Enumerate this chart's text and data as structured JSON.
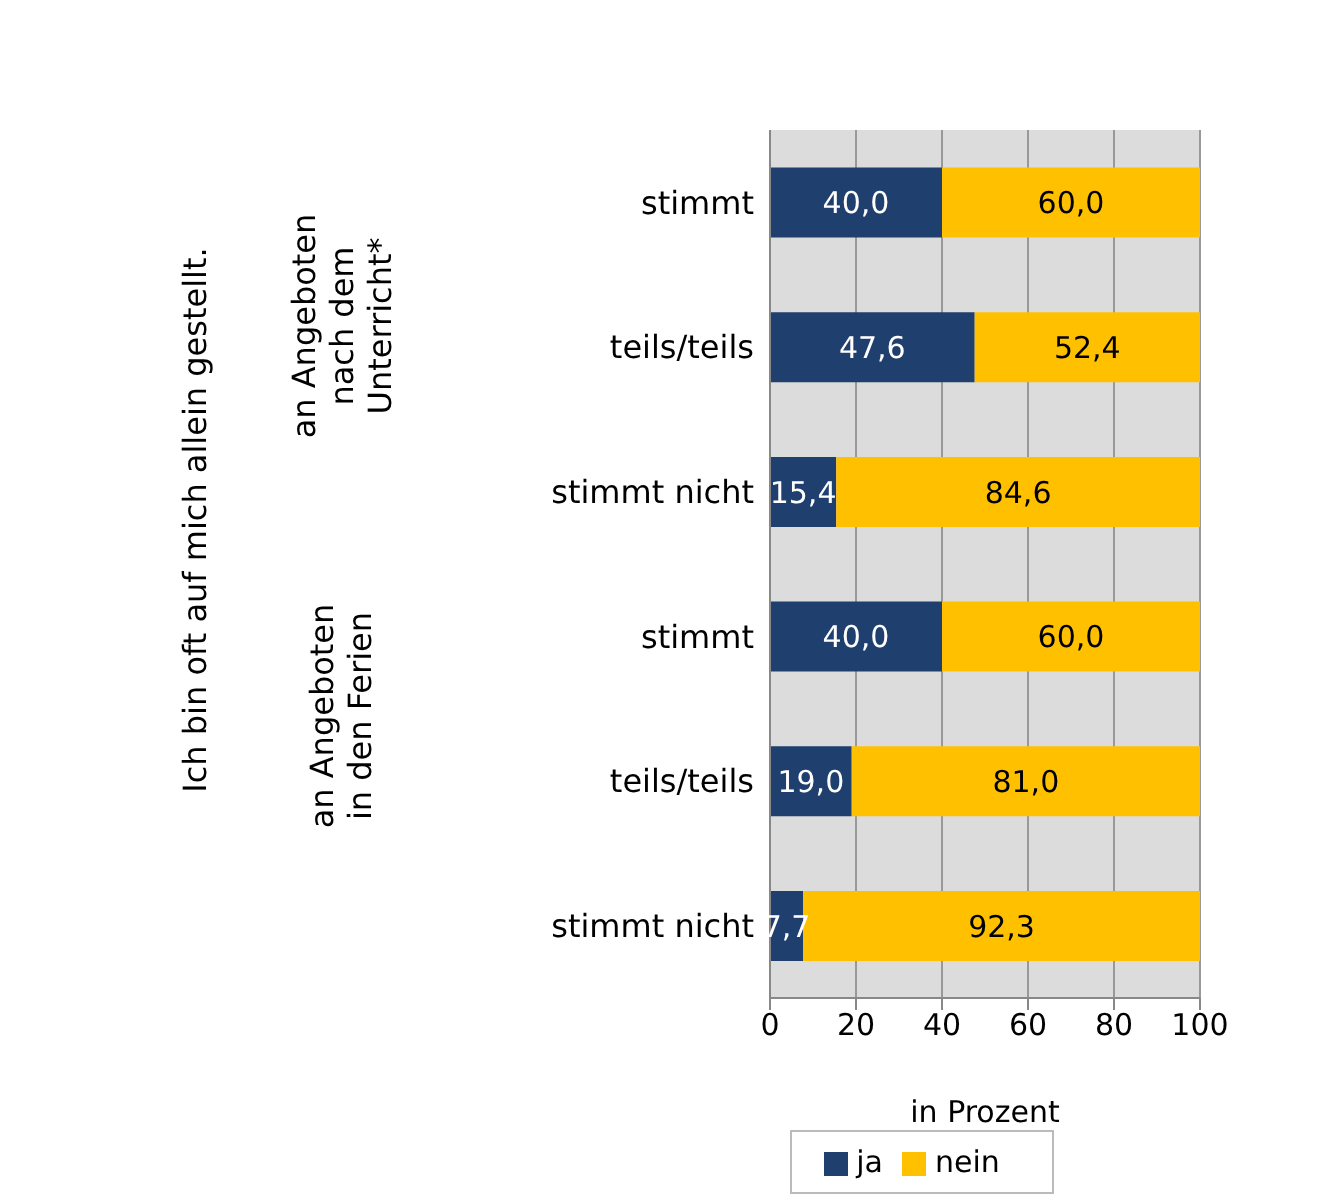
{
  "chart_data": {
    "type": "bar",
    "orientation": "horizontal",
    "stacked": true,
    "categories": [
      "stimmt",
      "teils/teils",
      "stimmt nicht",
      "stimmt",
      "teils/teils",
      "stimmt nicht"
    ],
    "series": [
      {
        "name": "ja",
        "color": "#1f3f6e",
        "values": [
          40.0,
          47.6,
          15.4,
          40.0,
          19.0,
          7.7
        ],
        "value_labels": [
          "40,0",
          "47,6",
          "15,4",
          "40,0",
          "19,0",
          "7,7"
        ]
      },
      {
        "name": "nein",
        "color": "#ffc000",
        "values": [
          60.0,
          52.4,
          84.6,
          60.0,
          81.0,
          92.3
        ],
        "value_labels": [
          "60,0",
          "52,4",
          "84,6",
          "60,0",
          "81,0",
          "92,3"
        ]
      }
    ],
    "xlabel": "in Prozent",
    "xlim": [
      0,
      100
    ],
    "xticks": [
      0,
      20,
      40,
      60,
      80,
      100
    ],
    "grid": "x",
    "legend": "bottom",
    "annotations": [
      "Ich bin oft auf mich allein gestellt.",
      "an Angeboten nach dem Unterricht*",
      "an Angeboten in den Ferien"
    ]
  }
}
